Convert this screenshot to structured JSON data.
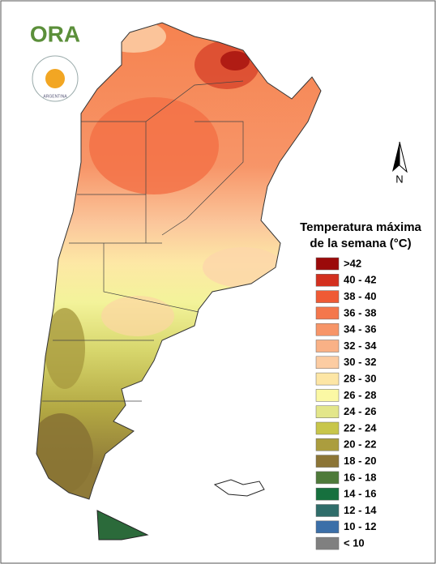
{
  "logo": {
    "name": "ORA",
    "seal_text": "ARGENTINA"
  },
  "compass": "N",
  "legend": {
    "title": [
      "Temperatura máxima",
      "de la semana (°C)"
    ],
    "items": [
      {
        "label": ">42",
        "color": "#9b0a0a"
      },
      {
        "label": "40 - 42",
        "color": "#d3301f"
      },
      {
        "label": "38 - 40",
        "color": "#ef5a35"
      },
      {
        "label": "36 - 38",
        "color": "#f4774c"
      },
      {
        "label": "34 - 36",
        "color": "#f79568"
      },
      {
        "label": "32 - 34",
        "color": "#f9b186"
      },
      {
        "label": "30 - 32",
        "color": "#fccca2"
      },
      {
        "label": "28 - 30",
        "color": "#fde6a5"
      },
      {
        "label": "26 - 28",
        "color": "#fbf8a4"
      },
      {
        "label": "24 - 26",
        "color": "#e3e68a"
      },
      {
        "label": "22 - 24",
        "color": "#c8c64a"
      },
      {
        "label": "20 - 22",
        "color": "#ab9d3e"
      },
      {
        "label": "18 - 20",
        "color": "#8c7536"
      },
      {
        "label": "16 - 18",
        "color": "#4e7a3a"
      },
      {
        "label": "14 - 16",
        "color": "#16703e"
      },
      {
        "label": "12 - 14",
        "color": "#2f6d6a"
      },
      {
        "label": "10 - 12",
        "color": "#3b6fa8"
      },
      {
        "label": "< 10",
        "color": "#808080"
      }
    ]
  }
}
